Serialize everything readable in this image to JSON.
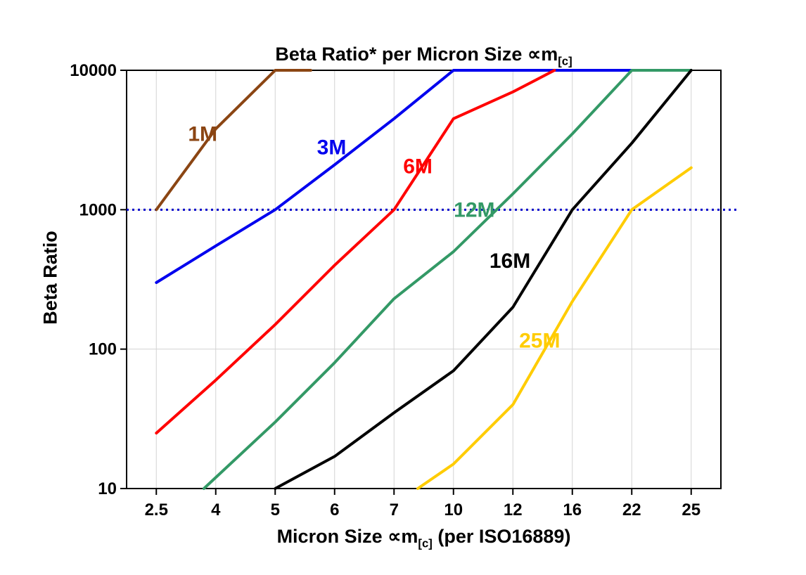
{
  "title": {
    "pre": "Beta Ratio* per Micron Size ∝m",
    "sub": "[c]"
  },
  "yAxis": {
    "label": "Beta Ratio"
  },
  "xAxis": {
    "label_pre": "Micron Size ∝m",
    "label_sub": "[c]",
    "label_post": " (per ISO16889)"
  },
  "chart_data": {
    "type": "line",
    "title": "Beta Ratio* per Micron Size ∝m[c]",
    "xlabel": "Micron Size ∝m[c] (per ISO16889)",
    "ylabel": "Beta Ratio",
    "x_type": "categorical",
    "y_scale": "log",
    "categories": [
      "2.5",
      "4",
      "5",
      "6",
      "7",
      "10",
      "12",
      "16",
      "22",
      "25"
    ],
    "ylim": [
      10,
      10000
    ],
    "y_ticks": [
      10,
      100,
      1000,
      10000
    ],
    "grid": true,
    "legend": "inline-labels",
    "reference_line": {
      "y": 1000,
      "color": "#0000CC",
      "style": "dotted"
    },
    "series": [
      {
        "name": "1M",
        "color": "#8B4513",
        "label_at": [
          0.78,
          3500
        ],
        "points": [
          [
            0,
            1000
          ],
          [
            1,
            3800
          ],
          [
            2,
            10000
          ],
          [
            2.6,
            10000
          ]
        ]
      },
      {
        "name": "3M",
        "color": "#0000EE",
        "label_at": [
          2.95,
          2800
        ],
        "points": [
          [
            0,
            300
          ],
          [
            1,
            550
          ],
          [
            2,
            1000
          ],
          [
            3,
            2100
          ],
          [
            4,
            4500
          ],
          [
            5,
            10000
          ],
          [
            8,
            10000
          ]
        ]
      },
      {
        "name": "6M",
        "color": "#FF0000",
        "label_at": [
          4.4,
          2050
        ],
        "points": [
          [
            0,
            25
          ],
          [
            1,
            60
          ],
          [
            2,
            150
          ],
          [
            3,
            400
          ],
          [
            4,
            1000
          ],
          [
            5,
            4500
          ],
          [
            6,
            7000
          ],
          [
            6.7,
            10000
          ]
        ]
      },
      {
        "name": "12M",
        "color": "#339966",
        "label_at": [
          5.35,
          1000
        ],
        "points": [
          [
            0.8,
            10
          ],
          [
            2,
            30
          ],
          [
            3,
            80
          ],
          [
            4,
            230
          ],
          [
            5,
            500
          ],
          [
            6,
            1300
          ],
          [
            7,
            3500
          ],
          [
            8,
            10000
          ],
          [
            9,
            10000
          ]
        ]
      },
      {
        "name": "16M",
        "color": "#000000",
        "label_at": [
          5.95,
          430
        ],
        "points": [
          [
            2,
            10
          ],
          [
            3,
            17
          ],
          [
            4,
            35
          ],
          [
            5,
            70
          ],
          [
            6,
            200
          ],
          [
            7,
            1000
          ],
          [
            8,
            3000
          ],
          [
            9,
            10000
          ]
        ]
      },
      {
        "name": "25M",
        "color": "#FFCC00",
        "label_at": [
          6.45,
          115
        ],
        "points": [
          [
            4.4,
            10
          ],
          [
            5,
            15
          ],
          [
            6,
            40
          ],
          [
            7,
            220
          ],
          [
            8,
            1000
          ],
          [
            9,
            2000
          ]
        ]
      }
    ]
  }
}
